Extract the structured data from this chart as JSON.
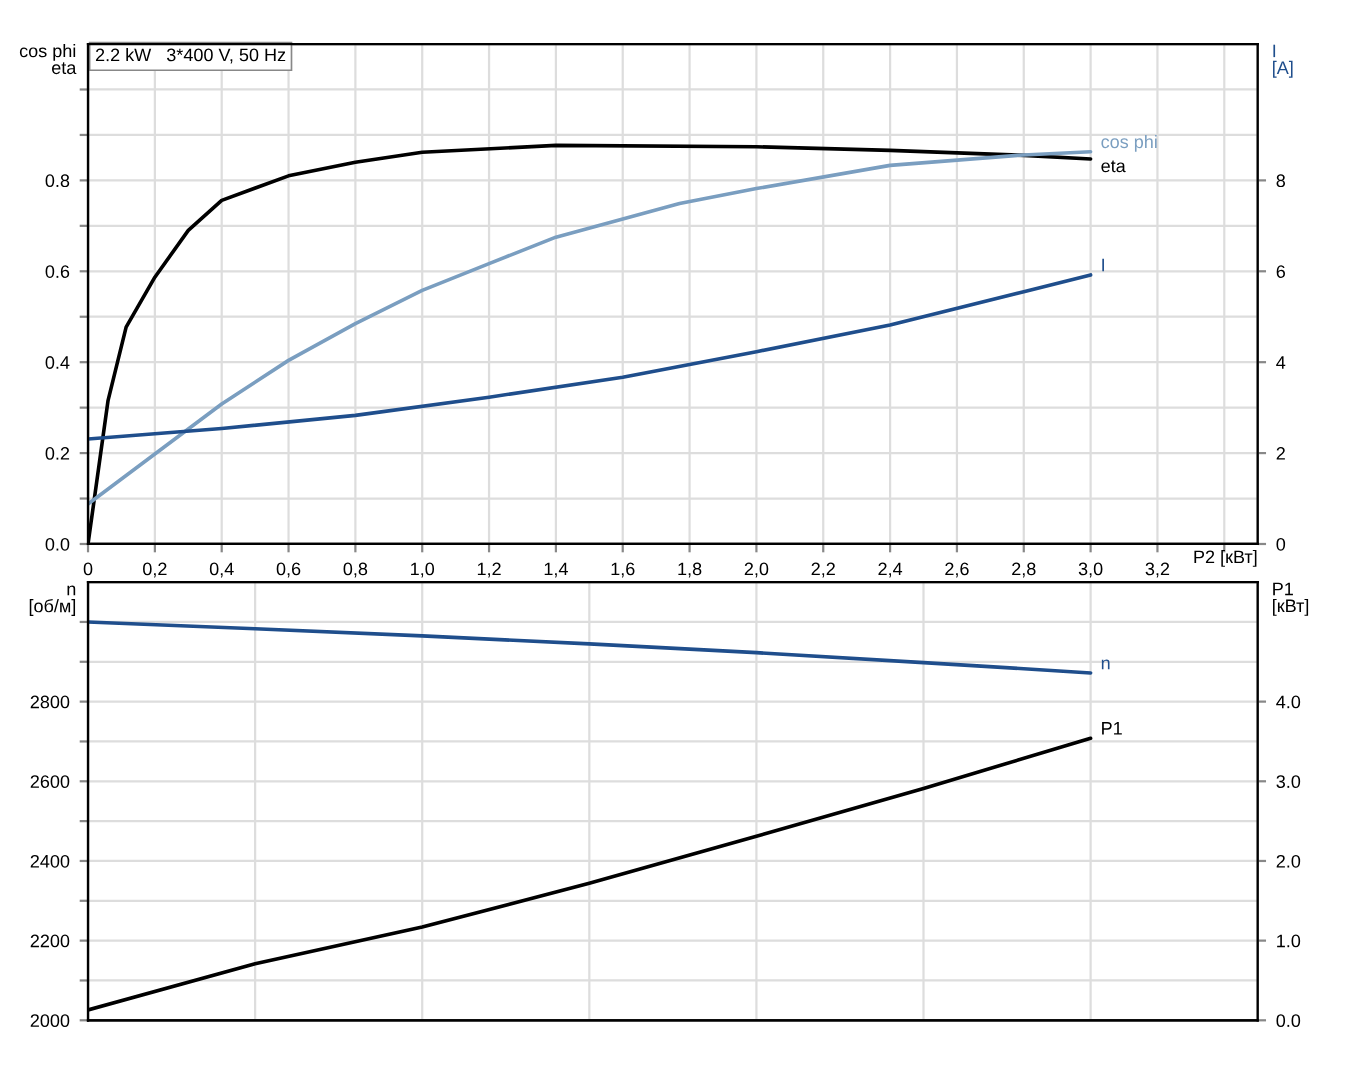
{
  "chart_data": [
    {
      "type": "line",
      "title": "2.2 kW   3*400 V, 50 Hz",
      "xlabel": "P2 [кВт]",
      "ylabel": "cos phi\neta",
      "y2label": "I\n[A]",
      "grid": true,
      "legend": false,
      "xlim": [
        0,
        3.5
      ],
      "xticks": [
        0,
        {
          "value": 0.2,
          "label": "0,2"
        },
        {
          "value": 0.4,
          "label": "0,4"
        },
        {
          "value": 0.6,
          "label": "0,6"
        },
        {
          "value": 0.8,
          "label": "0,8"
        },
        {
          "value": 1.0,
          "label": "1,0"
        },
        {
          "value": 1.2,
          "label": "1,2"
        },
        {
          "value": 1.4,
          "label": "1,4"
        },
        {
          "value": 1.6,
          "label": "1,6"
        },
        {
          "value": 1.8,
          "label": "1,8"
        },
        {
          "value": 2.0,
          "label": "2,0"
        },
        {
          "value": 2.2,
          "label": "2,2"
        },
        {
          "value": 2.4,
          "label": "2,4"
        },
        {
          "value": 2.6,
          "label": "2,6"
        },
        {
          "value": 2.8,
          "label": "2,8"
        },
        {
          "value": 3.0,
          "label": "3,0"
        },
        {
          "value": 3.2,
          "label": "3,2"
        },
        {
          "value": 3.4,
          "label": null
        }
      ],
      "ylim": [
        0,
        1.1
      ],
      "yticks": [
        {
          "value": 0,
          "label": "0.0"
        },
        {
          "value": 0.1,
          "label": null
        },
        {
          "value": 0.2,
          "label": "0.2"
        },
        {
          "value": 0.3,
          "label": null
        },
        {
          "value": 0.4,
          "label": "0.4"
        },
        {
          "value": 0.5,
          "label": null
        },
        {
          "value": 0.6,
          "label": "0.6"
        },
        {
          "value": 0.7,
          "label": null
        },
        {
          "value": 0.8,
          "label": "0.8"
        },
        {
          "value": 0.9,
          "label": null
        },
        {
          "value": 1.0,
          "label": null
        }
      ],
      "y2lim": [
        0,
        11
      ],
      "y2ticks": [
        0,
        2,
        4,
        6,
        8
      ],
      "series": [
        {
          "name": "eta",
          "color": "#000000",
          "x": [
            0,
            0.06,
            0.114,
            0.2,
            0.3,
            0.4,
            0.6,
            0.8,
            1.0,
            1.4,
            2.0,
            2.4,
            2.8,
            3.0
          ],
          "values": [
            0,
            0.316,
            0.477,
            0.587,
            0.69,
            0.756,
            0.81,
            0.84,
            0.862,
            0.877,
            0.874,
            0.866,
            0.855,
            0.847
          ]
        },
        {
          "name": "cos phi",
          "color": "#7a9ec0",
          "x": [
            0,
            0.2,
            0.4,
            0.6,
            0.8,
            1.0,
            1.2,
            1.4,
            1.77,
            2.0,
            2.4,
            2.8,
            3.0
          ],
          "values": [
            0.088,
            0.198,
            0.308,
            0.404,
            0.485,
            0.558,
            0.617,
            0.675,
            0.749,
            0.782,
            0.833,
            0.856,
            0.863
          ]
        },
        {
          "name": "I",
          "color": "#1f4e8c",
          "axis": "y2",
          "x": [
            0,
            0.4,
            0.8,
            1.2,
            1.6,
            2.0,
            2.4,
            2.8,
            3.0
          ],
          "values": [
            2.31,
            2.54,
            2.83,
            3.23,
            3.67,
            4.23,
            4.82,
            5.55,
            5.92
          ]
        }
      ]
    },
    {
      "type": "line",
      "ylabel": "n\n[об/м]",
      "y2label": "P1\n[кВт]",
      "grid": true,
      "legend": false,
      "tick_labels": "y",
      "xlim": [
        0,
        3.5
      ],
      "xticks": [
        {
          "value": 0.5,
          "label": null
        },
        {
          "value": 1.0,
          "label": null
        },
        {
          "value": 1.5,
          "label": null
        },
        {
          "value": 2.0,
          "label": null
        },
        {
          "value": 2.5,
          "label": null
        },
        {
          "value": 3.0,
          "label": null
        }
      ],
      "ylim": [
        2000,
        3100
      ],
      "yticks": [
        2000,
        {
          "value": 2100,
          "label": null
        },
        2200,
        {
          "value": 2300,
          "label": null
        },
        2400,
        {
          "value": 2500,
          "label": null
        },
        2600,
        {
          "value": 2700,
          "label": null
        },
        2800,
        {
          "value": 2900,
          "label": null
        },
        {
          "value": 3000,
          "label": null
        }
      ],
      "y2lim": [
        0,
        5.5
      ],
      "y2ticks": [
        {
          "value": 0,
          "label": "0.0"
        },
        {
          "value": 1,
          "label": "1.0"
        },
        {
          "value": 2,
          "label": "2.0"
        },
        {
          "value": 3,
          "label": "3.0"
        },
        {
          "value": 4,
          "label": "4.0"
        }
      ],
      "series": [
        {
          "name": "n",
          "color": "#1f4e8c",
          "x": [
            0,
            0.5,
            1.0,
            1.5,
            2.0,
            2.5,
            3.0
          ],
          "values": [
            3000,
            2983,
            2965,
            2945,
            2923,
            2898,
            2872
          ]
        },
        {
          "name": "P1",
          "color": "#000000",
          "axis": "y2",
          "x": [
            0,
            0.5,
            1.0,
            1.5,
            2.0,
            2.5,
            3.0
          ],
          "values": [
            0.13,
            0.71,
            1.17,
            1.72,
            2.31,
            2.91,
            3.54
          ]
        }
      ]
    }
  ]
}
